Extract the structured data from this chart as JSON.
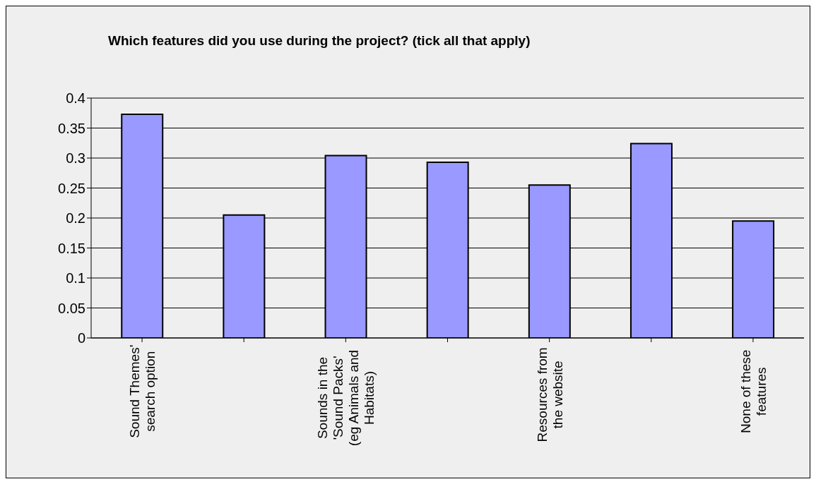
{
  "chart_data": {
    "type": "bar",
    "title": "Which features did you use during the project? (tick all that apply)",
    "categories": [
      "Sound Themes' search option",
      null,
      "Sounds in the 'Sound Packs' (eg Animals and Habitats)",
      null,
      "Resources from the website",
      null,
      "None of these features"
    ],
    "values": [
      0.373,
      0.205,
      0.304,
      0.293,
      0.255,
      0.324,
      0.195
    ],
    "color": "#9999ff",
    "ylim": [
      0,
      0.4
    ],
    "yticks": [
      0,
      0.05,
      0.1,
      0.15,
      0.2,
      0.25,
      0.3,
      0.35,
      0.4
    ],
    "grid": "y",
    "legend": false
  }
}
